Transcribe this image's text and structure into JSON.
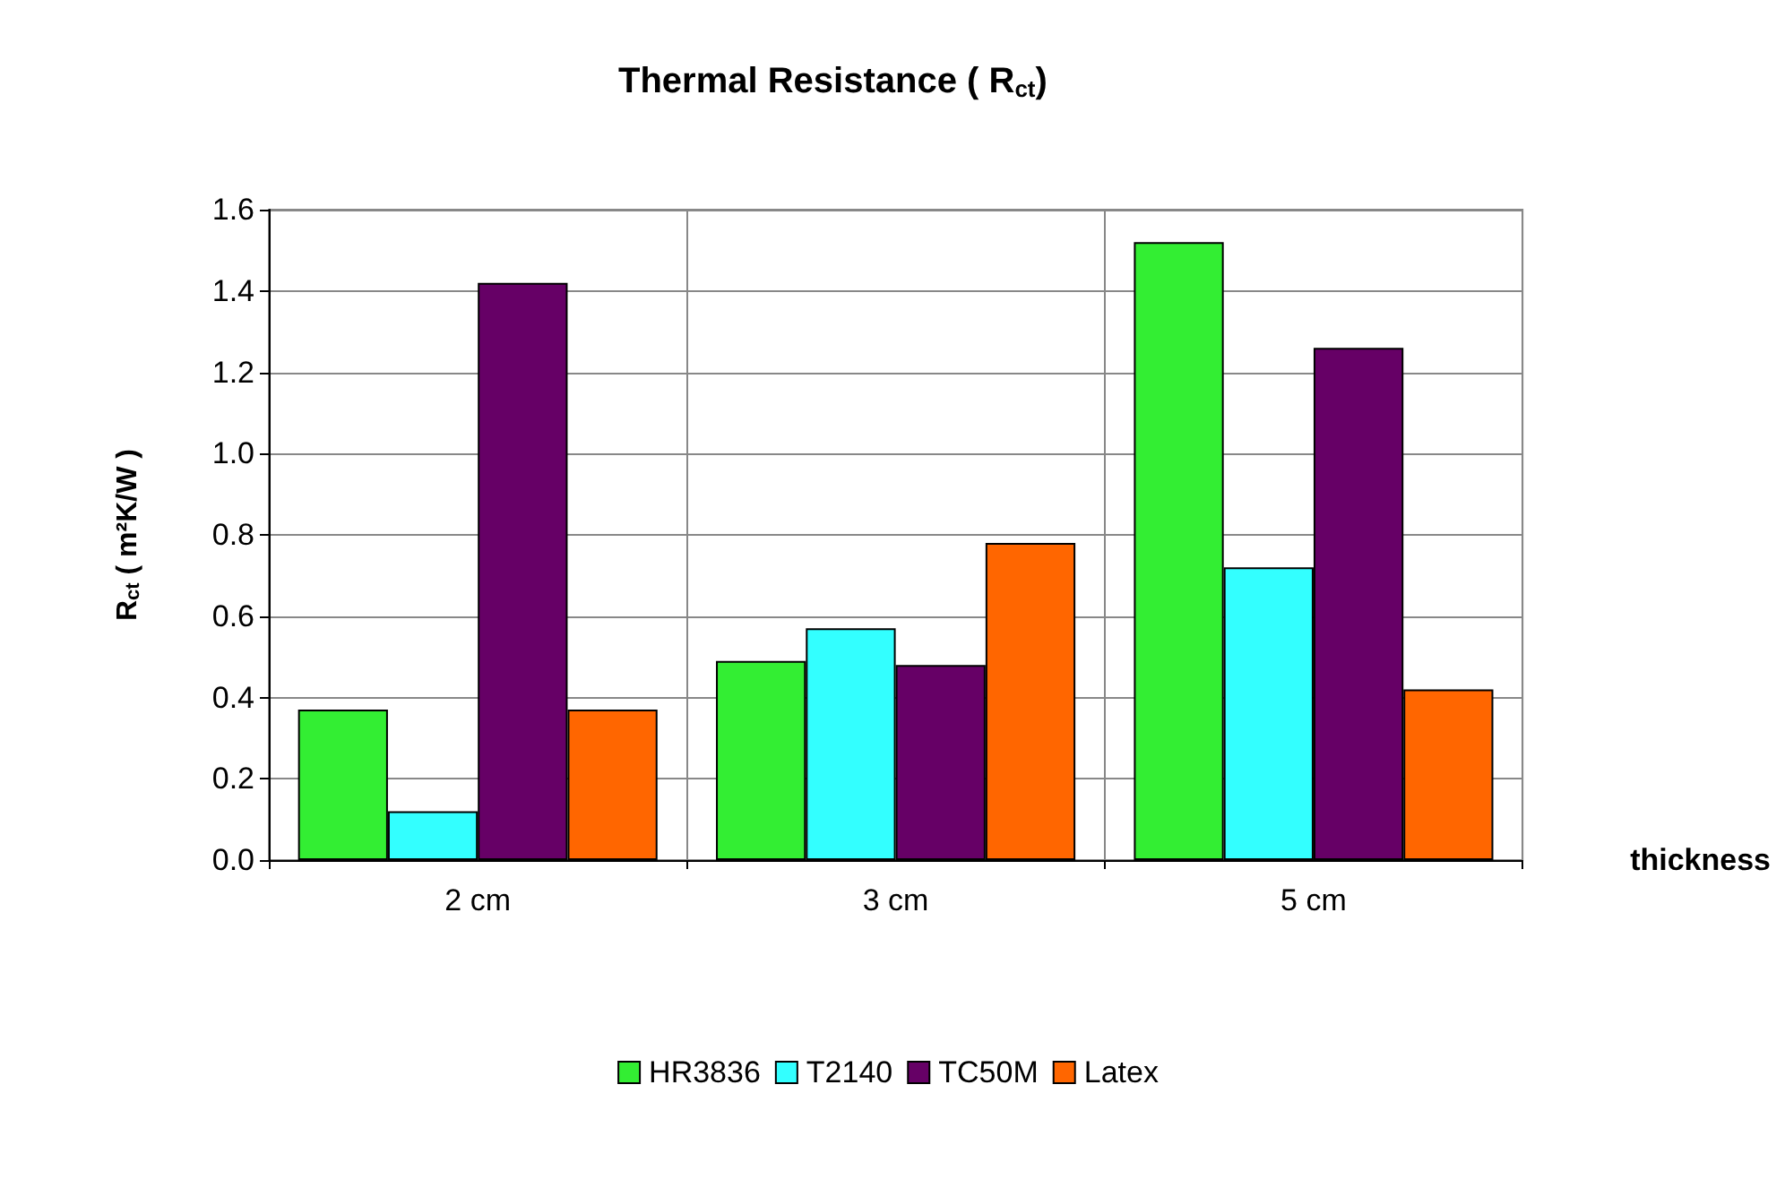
{
  "chart_data": {
    "type": "bar",
    "title": "Thermal Resistance ( R$_{ct}$)",
    "xlabel": "thickness",
    "ylabel": "R$_{ct}$ ( m²K/W )",
    "categories": [
      "2 cm",
      "3 cm",
      "5 cm"
    ],
    "series": [
      {
        "name": "HR3836",
        "color": "#33ee33",
        "values": [
          0.37,
          0.49,
          1.52
        ]
      },
      {
        "name": "T2140",
        "color": "#33ffff",
        "values": [
          0.12,
          0.57,
          0.72
        ]
      },
      {
        "name": "TC50M",
        "color": "#660066",
        "values": [
          1.42,
          0.48,
          1.26
        ]
      },
      {
        "name": "Latex",
        "color": "#ff6600",
        "values": [
          0.37,
          0.78,
          0.42
        ]
      }
    ],
    "ylim": [
      0,
      1.6
    ],
    "yticks": [
      {
        "value": 0,
        "label": "0.0"
      },
      0.2,
      0.4,
      0.6,
      0.8,
      {
        "value": 1,
        "label": "1.0"
      },
      1.2,
      1.4,
      1.6
    ],
    "grid": true,
    "legend": "bottom"
  }
}
